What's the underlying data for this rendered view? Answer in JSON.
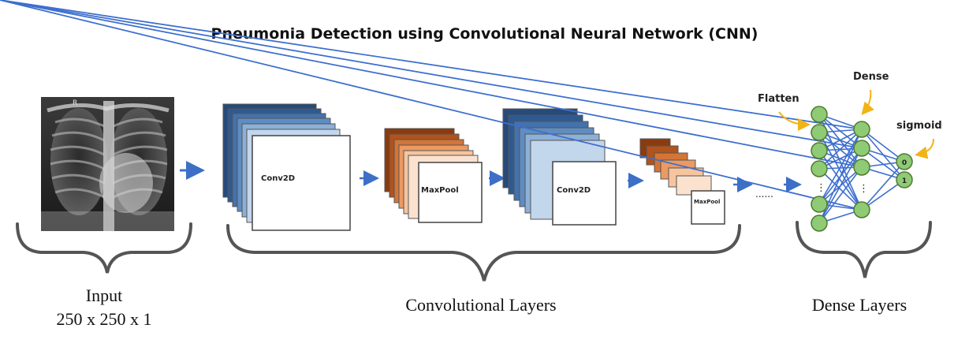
{
  "title": "Pneumonia Detection using Convolutional Neural Network (CNN)",
  "xray_marker": "R",
  "layers": {
    "conv1": "Conv2D",
    "pool1": "MaxPool",
    "conv2": "Conv2D",
    "pool2": "MaxPool",
    "ellipsis": "......"
  },
  "dense": {
    "flatten_label": "Flatten",
    "dense_label": "Dense",
    "sigmoid_label": "sigmoid",
    "vertical_dots": "⋮",
    "output_nodes": [
      "0",
      "1"
    ]
  },
  "groups": {
    "input_title": "Input",
    "input_shape": "250 x 250 x 1",
    "conv_group": "Convolutional Layers",
    "dense_group": "Dense Layers"
  },
  "colors": {
    "conv_dark": "#2b4f7e",
    "pool_dark": "#8a3b10",
    "arrow": "#3d6fc6",
    "node_fill": "#8fca74",
    "node_stroke": "#4f7a32",
    "edge": "#3e6fcf",
    "callout_arrow": "#f2b315",
    "bracket": "#555555"
  }
}
